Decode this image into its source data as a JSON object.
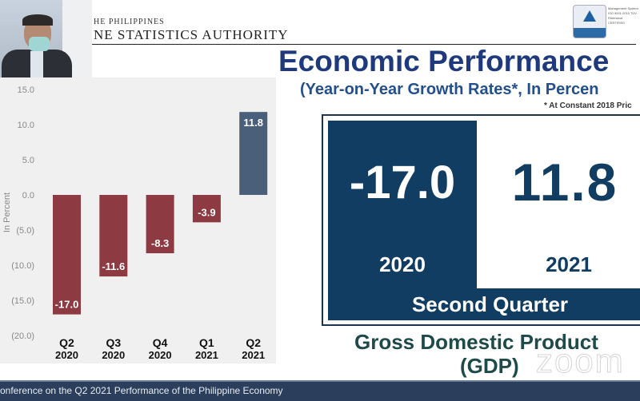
{
  "header": {
    "org_line1": "HE PHILIPPINES",
    "org_line2": "NE STATISTICS AUTHORITY",
    "cert_text": "Management System ISO 9001:2015 TÜV Rheinland CERTIFIED"
  },
  "slide": {
    "title": "Economic Performance",
    "subtitle": "(Year-on-Year Growth Rates*, In Percen",
    "footnote": "* At Constant 2018 Pric",
    "highlight": {
      "value_2020": "-17.0",
      "year_2020": "2020",
      "value_2021": "11.8",
      "year_2021": "2021",
      "period": "Second Quarter"
    },
    "gdp_line1": "Gross Domestic Product",
    "gdp_line2": "(GDP)"
  },
  "watermark": "zoom",
  "bottom_bar": {
    "text": "onference on the Q2 2021 Performance of the Philippine Economy"
  },
  "chart_data": {
    "type": "bar",
    "categories": [
      [
        "Q2",
        "2020"
      ],
      [
        "Q3",
        "2020"
      ],
      [
        "Q4",
        "2020"
      ],
      [
        "Q1",
        "2021"
      ],
      [
        "Q2",
        "2021"
      ]
    ],
    "values": [
      -17.0,
      -11.6,
      -8.3,
      -3.9,
      11.8
    ],
    "data_labels": [
      "-17.0",
      "-11.6",
      "-8.3",
      "-3.9",
      "11.8"
    ],
    "ylabel": "In Percent",
    "ylim": [
      -20,
      15
    ],
    "yticks": [
      15,
      10,
      5,
      0,
      -5,
      -10,
      -15,
      -20
    ],
    "ytick_labels": [
      "15.0",
      "10.0",
      "5.0",
      "0.0",
      "(5.0)",
      "(10.0)",
      "(15.0)",
      "(20.0)"
    ],
    "grid": false,
    "colors": {
      "negative": "#8e3a42",
      "positive": "#4a5f7a"
    }
  }
}
